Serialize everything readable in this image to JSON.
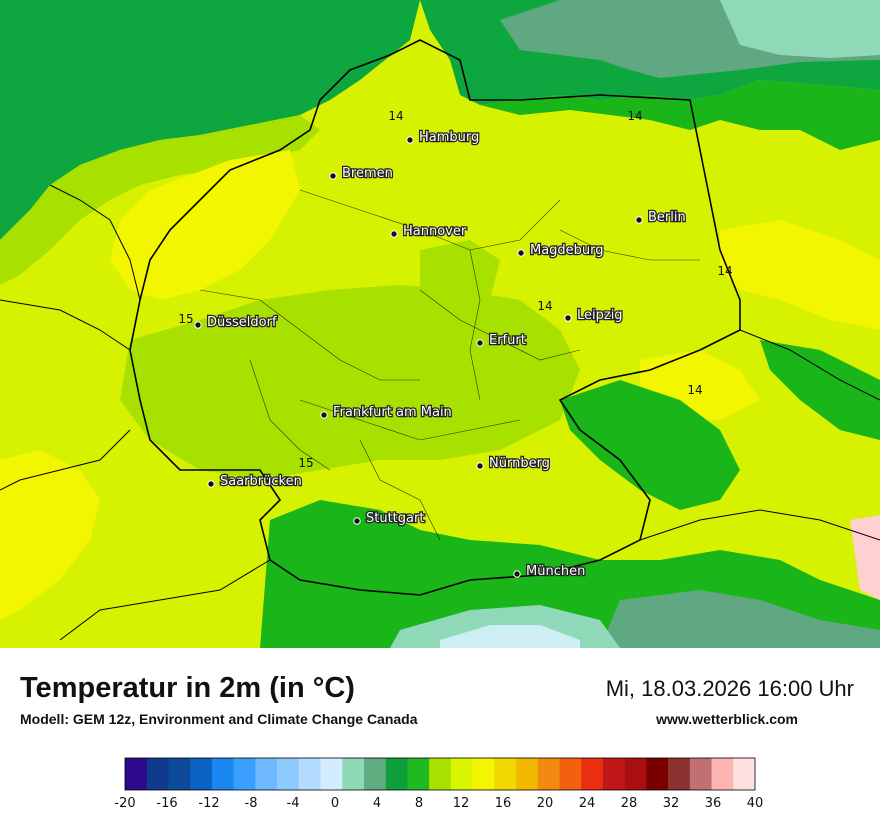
{
  "map": {
    "cities": [
      {
        "name": "Hamburg"
      },
      {
        "name": "Bremen"
      },
      {
        "name": "Berlin"
      },
      {
        "name": "Hannover"
      },
      {
        "name": "Magdeburg"
      },
      {
        "name": "Düsseldorf"
      },
      {
        "name": "Leipzig"
      },
      {
        "name": "Erfurt"
      },
      {
        "name": "Frankfurt am Main"
      },
      {
        "name": "Nürnberg"
      },
      {
        "name": "Saarbrücken"
      },
      {
        "name": "Stuttgart"
      },
      {
        "name": "München"
      }
    ],
    "isotherm_labels": [
      "14",
      "14",
      "14",
      "15",
      "14",
      "14",
      "15"
    ],
    "fill_colors": {
      "sea_green": "#0ea63f",
      "sea_dark": "#5fa882",
      "sea_light": "#8fd9b8",
      "warm_yellow": "#f2f600",
      "yellow_green": "#d7f200",
      "light_green": "#a8e000",
      "green": "#19b519",
      "pale_cyan": "#cdeef2"
    }
  },
  "footer": {
    "title": "Temperatur in 2m (in °C)",
    "model": "Modell: GEM 12z, Environment and Climate Change Canada",
    "datetime": "Mi, 18.03.2026 16:00 Uhr",
    "website": "www.wetterblick.com"
  },
  "legend": {
    "ticks": [
      "-20",
      "-16",
      "-12",
      "-8",
      "-4",
      "0",
      "4",
      "8",
      "12",
      "16",
      "20",
      "24",
      "28",
      "32",
      "36",
      "40"
    ],
    "colors": [
      "#2d0a8c",
      "#103a8c",
      "#0e4a9a",
      "#0a62c2",
      "#1a86f0",
      "#3aa0ff",
      "#6fb9ff",
      "#8fcaff",
      "#b4dcff",
      "#d4ecff",
      "#8ed9b5",
      "#60ad82",
      "#0f9e3c",
      "#1fba1f",
      "#a8e000",
      "#d9f500",
      "#f2f600",
      "#f2d800",
      "#f2b800",
      "#f28a10",
      "#f26010",
      "#e83010",
      "#c01818",
      "#a81010",
      "#780000",
      "#8c3030",
      "#c07070",
      "#ffb4b4",
      "#ffe0e0"
    ]
  }
}
